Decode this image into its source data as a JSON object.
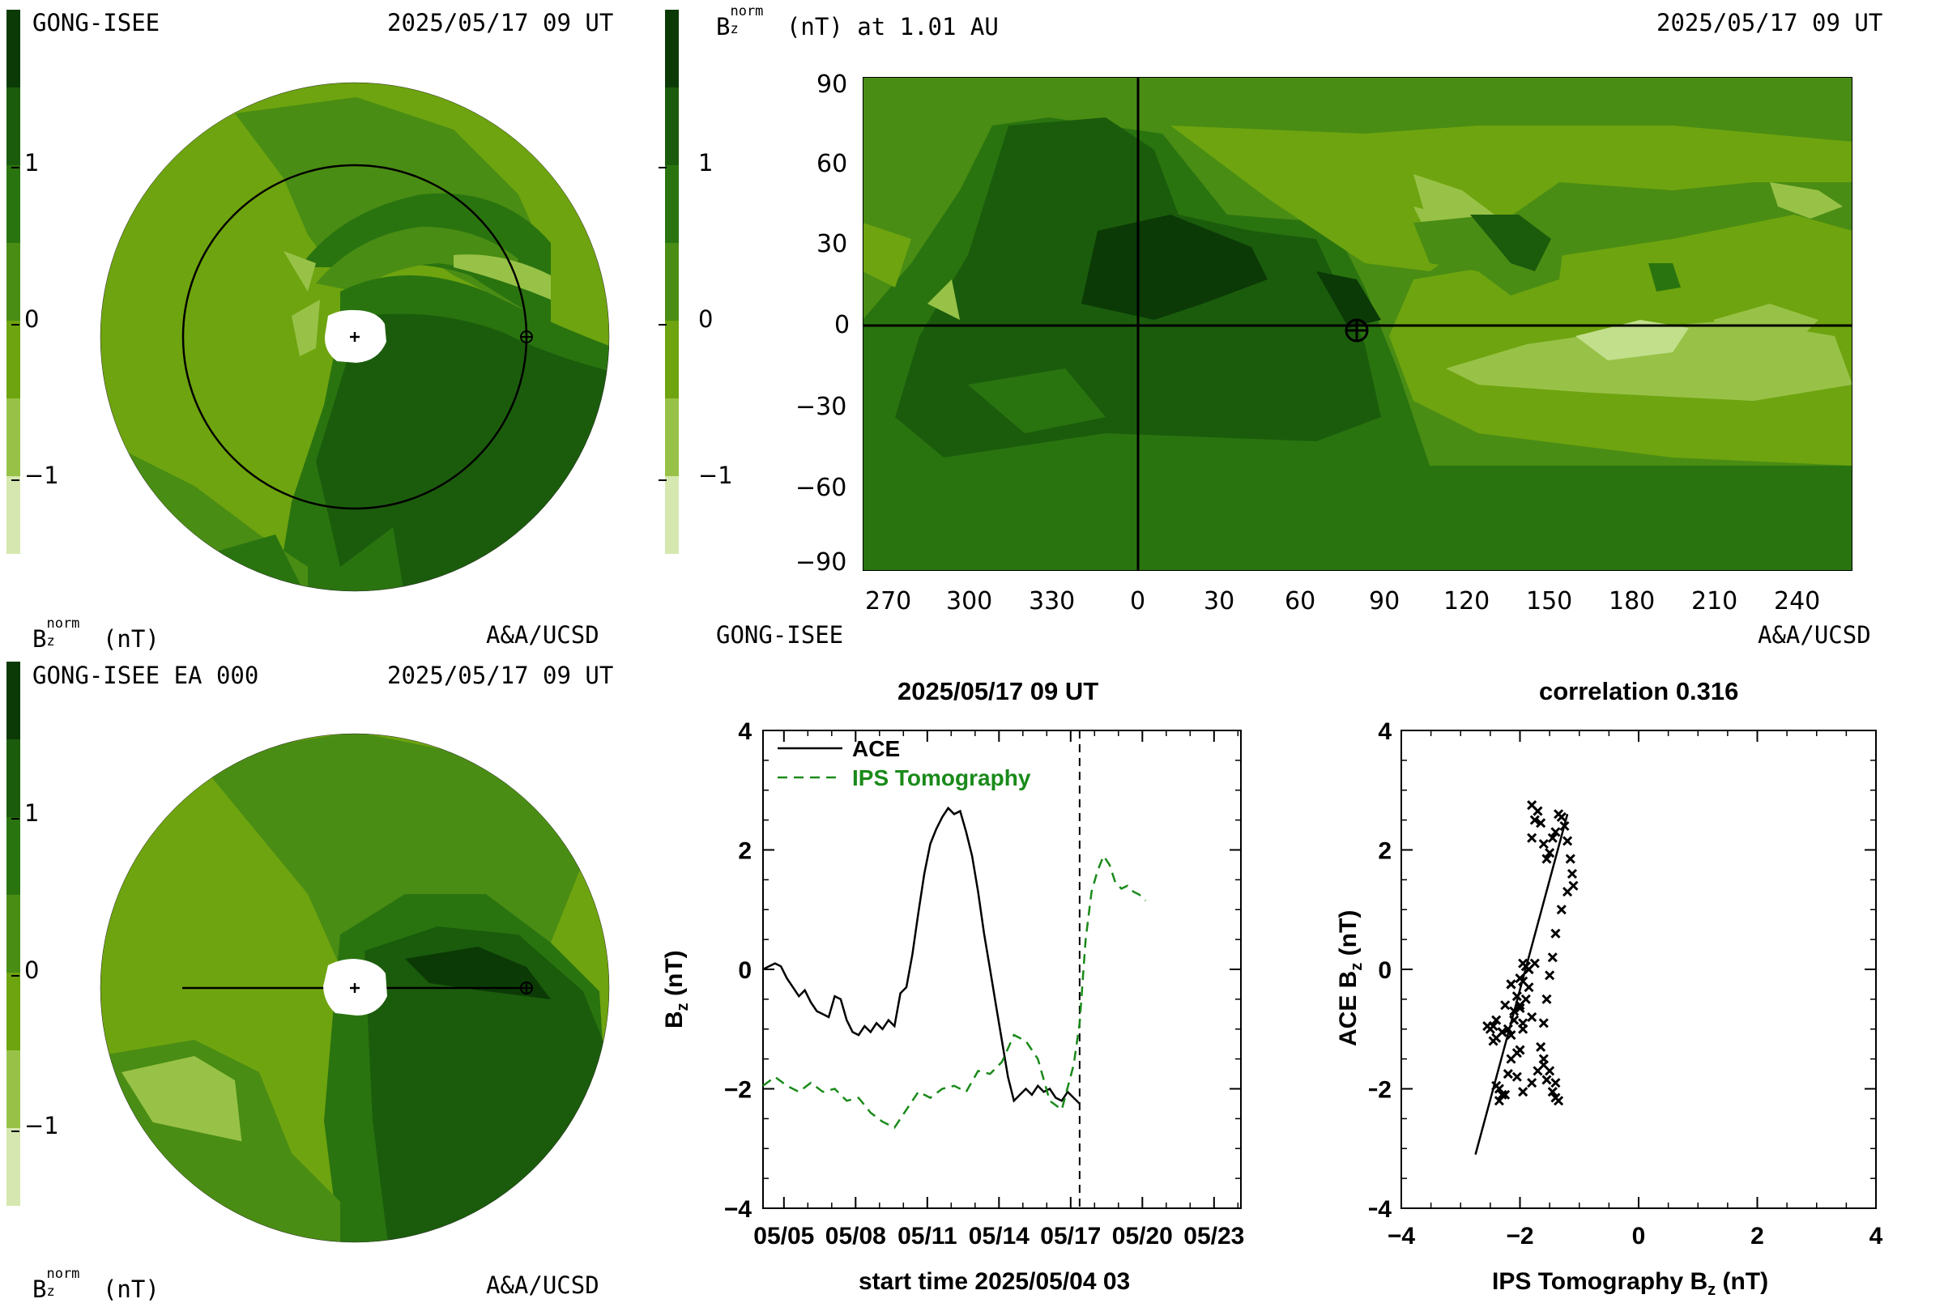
{
  "colors": {
    "level_darkest": "#0b3a06",
    "level_1": "#1b5c0c",
    "level_2": "#2a7410",
    "level_3": "#4a8d14",
    "level_4": "#6ea40f",
    "level_5": "#98c247",
    "level_6": "#c2df8c",
    "level_7": "#d6e8b0",
    "ips_line": "#1a8a1a"
  },
  "panel_tl": {
    "source": "GONG-ISEE",
    "time": "2025/05/17 09 UT",
    "bz_label": "B",
    "bz_sub": "z",
    "bz_sup": "norm",
    "bz_unit": "(nT)",
    "credit": "A&A/UCSD",
    "cbar_ticks": [
      "1",
      "0",
      "−1"
    ]
  },
  "panel_tr": {
    "bz_label": "B",
    "bz_sub": "z",
    "bz_sup": "norm",
    "header_rest": "(nT) at 1.01 AU",
    "time": "2025/05/17 09 UT",
    "source": "GONG-ISEE",
    "credit": "A&A/UCSD",
    "cbar_ticks": [
      "1",
      "0",
      "−1"
    ],
    "y_ticks": [
      "90",
      "60",
      "30",
      "0",
      "−30",
      "−60",
      "−90"
    ],
    "x_ticks": [
      "270",
      "300",
      "330",
      "0",
      "30",
      "60",
      "90",
      "120",
      "150",
      "180",
      "210",
      "240"
    ]
  },
  "panel_bl": {
    "source": "GONG-ISEE EA 000",
    "time": "2025/05/17 09 UT",
    "bz_label": "B",
    "bz_sub": "z",
    "bz_sup": "norm",
    "bz_unit": "(nT)",
    "credit": "A&A/UCSD",
    "cbar_ticks": [
      "1",
      "0",
      "−1"
    ]
  },
  "chart_data": [
    {
      "type": "line",
      "title": "2025/05/17 09 UT",
      "xlabel": "start time 2025/05/04 03",
      "ylabel": "B",
      "ylabel_sub": "z",
      "ylabel_unit": " (nT)",
      "x_tick_labels": [
        "05/05",
        "05/08",
        "05/11",
        "05/14",
        "05/17",
        "05/20",
        "05/23"
      ],
      "x_tick_days": [
        0.875,
        3.875,
        6.875,
        9.875,
        12.875,
        15.875,
        18.875
      ],
      "x_unit": "days since start time",
      "xlim": [
        0,
        20
      ],
      "ylim": [
        -4,
        4
      ],
      "y_ticks": [
        -4,
        -2,
        0,
        2,
        4
      ],
      "vline_day": 13.25,
      "legend": "top-left",
      "series": [
        {
          "name": "ACE",
          "style": "solid",
          "x": [
            0,
            0.25,
            0.5,
            0.75,
            1.0,
            1.25,
            1.5,
            1.75,
            2.0,
            2.25,
            2.5,
            2.75,
            3.0,
            3.25,
            3.5,
            3.75,
            4.0,
            4.25,
            4.5,
            4.75,
            5.0,
            5.25,
            5.5,
            5.75,
            6.0,
            6.25,
            6.5,
            6.75,
            7.0,
            7.25,
            7.5,
            7.75,
            8.0,
            8.25,
            8.5,
            8.75,
            9.0,
            9.25,
            9.5,
            9.75,
            10.0,
            10.25,
            10.5,
            10.75,
            11.0,
            11.25,
            11.5,
            11.75,
            12.0,
            12.25,
            12.5,
            12.75,
            13.0,
            13.25
          ],
          "y": [
            0.0,
            0.05,
            0.1,
            0.05,
            -0.15,
            -0.3,
            -0.45,
            -0.35,
            -0.55,
            -0.7,
            -0.75,
            -0.8,
            -0.45,
            -0.5,
            -0.85,
            -1.05,
            -1.1,
            -0.95,
            -1.05,
            -0.9,
            -1.0,
            -0.85,
            -0.95,
            -0.4,
            -0.3,
            0.25,
            0.95,
            1.6,
            2.1,
            2.35,
            2.55,
            2.7,
            2.6,
            2.65,
            2.3,
            1.9,
            1.3,
            0.6,
            0.0,
            -0.6,
            -1.2,
            -1.8,
            -2.2,
            -2.1,
            -2.0,
            -2.1,
            -1.95,
            -2.05,
            -2.0,
            -2.15,
            -2.2,
            -2.05,
            -2.15,
            -2.25
          ]
        },
        {
          "name": "IPS Tomography",
          "style": "dashed",
          "x": [
            0,
            0.5,
            1.0,
            1.5,
            2.0,
            2.5,
            3.0,
            3.5,
            4.0,
            4.5,
            5.0,
            5.5,
            6.0,
            6.5,
            7.0,
            7.5,
            8.0,
            8.5,
            9.0,
            9.5,
            10.0,
            10.5,
            11.0,
            11.5,
            12.0,
            12.5,
            13.0,
            13.25,
            13.5,
            13.75,
            14.0,
            14.25,
            14.5,
            14.75,
            15.0,
            15.25,
            15.5,
            15.75,
            16.0
          ],
          "y": [
            -1.95,
            -1.8,
            -1.95,
            -2.05,
            -1.9,
            -2.05,
            -2.0,
            -2.2,
            -2.15,
            -2.4,
            -2.55,
            -2.65,
            -2.35,
            -2.05,
            -2.15,
            -2.0,
            -1.95,
            -2.05,
            -1.7,
            -1.75,
            -1.55,
            -1.1,
            -1.2,
            -1.5,
            -2.2,
            -2.35,
            -1.6,
            -0.9,
            0.5,
            1.3,
            1.65,
            1.9,
            1.75,
            1.45,
            1.35,
            1.4,
            1.3,
            1.25,
            1.15
          ]
        }
      ]
    },
    {
      "type": "scatter",
      "title": "correlation 0.316",
      "xlabel": "IPS Tomography B",
      "xlabel_sub": "z",
      "xlabel_unit": " (nT)",
      "ylabel": "ACE B",
      "ylabel_sub": "z",
      "ylabel_unit": " (nT)",
      "xlim": [
        -4,
        4
      ],
      "ylim": [
        -4,
        4
      ],
      "x_ticks": [
        -4,
        -2,
        0,
        2,
        4
      ],
      "y_ticks": [
        -4,
        -2,
        0,
        2,
        4
      ],
      "fit_line": {
        "x": [
          -2.75,
          -1.2
        ],
        "y": [
          -3.1,
          2.6
        ]
      },
      "points": {
        "x": [
          -2.35,
          -2.3,
          -2.4,
          -2.25,
          -2.35,
          -2.2,
          -2.15,
          -2.05,
          -2.0,
          -1.95,
          -2.1,
          -2.0,
          -1.9,
          -1.85,
          -2.05,
          -1.95,
          -2.15,
          -2.25,
          -2.4,
          -2.5,
          -2.55,
          -2.45,
          -2.3,
          -2.2,
          -2.1,
          -2.0,
          -1.9,
          -2.15,
          -2.0,
          -1.85,
          -1.95,
          -1.8,
          -1.75,
          -1.8,
          -1.7,
          -1.65,
          -1.6,
          -1.55,
          -1.5,
          -1.45,
          -1.4,
          -1.35,
          -1.3,
          -1.25,
          -1.2,
          -1.15,
          -1.12,
          -1.1,
          -1.2,
          -1.3,
          -1.4,
          -1.45,
          -1.5,
          -1.55,
          -1.6,
          -1.65,
          -1.6,
          -1.55,
          -1.45,
          -1.4,
          -1.35,
          -1.4,
          -1.5,
          -1.6,
          -1.7,
          -1.8,
          -1.95,
          -2.05,
          -2.15,
          -2.3,
          -2.45,
          -2.4,
          -1.95,
          -1.8,
          -1.85,
          -1.75
        ],
        "y": [
          -2.0,
          -2.1,
          -1.95,
          -2.1,
          -2.2,
          -1.75,
          -1.1,
          -1.4,
          -1.35,
          -0.9,
          -0.85,
          -0.6,
          -0.5,
          -0.3,
          -0.45,
          -0.2,
          -0.25,
          -0.6,
          -1.15,
          -1.0,
          -0.95,
          -1.2,
          -1.05,
          -1.0,
          -0.7,
          -0.65,
          0.05,
          -0.25,
          -0.15,
          0.0,
          0.1,
          2.2,
          2.5,
          2.75,
          2.65,
          2.45,
          2.1,
          1.85,
          1.95,
          2.2,
          2.3,
          2.6,
          2.55,
          2.4,
          2.15,
          1.85,
          1.6,
          1.4,
          1.3,
          1.0,
          0.6,
          0.2,
          -0.1,
          -0.5,
          -0.9,
          -1.3,
          -1.6,
          -1.85,
          -2.05,
          -2.15,
          -2.2,
          -1.9,
          -1.7,
          -1.5,
          -1.7,
          -1.9,
          -2.05,
          -1.8,
          -1.5,
          -1.05,
          -0.95,
          -0.85,
          -1.0,
          -0.8,
          0.0,
          0.1
        ]
      }
    }
  ]
}
